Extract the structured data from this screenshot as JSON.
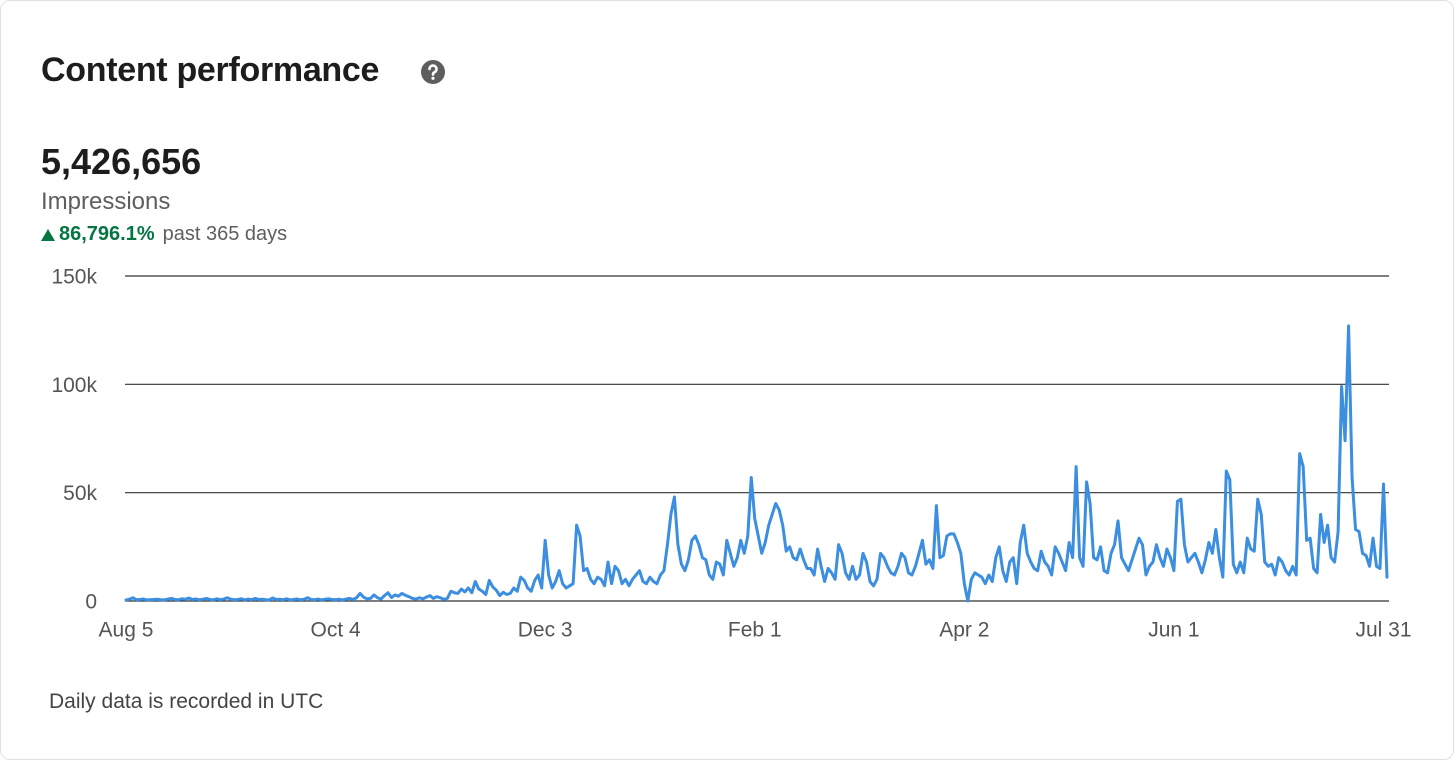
{
  "header": {
    "title": "Content performance"
  },
  "summary": {
    "value": "5,426,656",
    "metric": "Impressions",
    "change": "86,796.1%",
    "period": "past 365 days"
  },
  "chart_data": {
    "type": "line",
    "color": "#3b8ee0",
    "ylim": [
      0,
      150000
    ],
    "yticks": [
      {
        "value": 0,
        "label": "0"
      },
      {
        "value": 50000,
        "label": "50k"
      },
      {
        "value": 100000,
        "label": "100k"
      },
      {
        "value": 150000,
        "label": "150k"
      }
    ],
    "grid": true,
    "categories": [
      "Aug 5",
      null,
      null,
      null,
      null,
      null,
      null,
      null,
      null,
      null,
      null,
      null,
      null,
      null,
      null,
      null,
      null,
      null,
      null,
      null,
      null,
      null,
      null,
      null,
      null,
      null,
      null,
      null,
      null,
      null,
      null,
      null,
      null,
      null,
      null,
      null,
      null,
      null,
      null,
      null,
      null,
      null,
      null,
      null,
      null,
      null,
      null,
      null,
      null,
      null,
      null,
      null,
      null,
      null,
      null,
      null,
      null,
      null,
      null,
      null,
      "Oct 4",
      null,
      null,
      null,
      null,
      null,
      null,
      null,
      null,
      null,
      null,
      null,
      null,
      null,
      null,
      null,
      null,
      null,
      null,
      null,
      null,
      null,
      null,
      null,
      null,
      null,
      null,
      null,
      null,
      null,
      null,
      null,
      null,
      null,
      null,
      null,
      null,
      null,
      null,
      null,
      null,
      null,
      null,
      null,
      null,
      null,
      null,
      null,
      null,
      null,
      null,
      null,
      null,
      null,
      null,
      null,
      null,
      null,
      null,
      null,
      "Dec 3",
      null,
      null,
      null,
      null,
      null,
      null,
      null,
      null,
      null,
      null,
      null,
      null,
      null,
      null,
      null,
      null,
      null,
      null,
      null,
      null,
      null,
      null,
      null,
      null,
      null,
      null,
      null,
      null,
      null,
      null,
      null,
      null,
      null,
      null,
      null,
      null,
      null,
      null,
      null,
      null,
      null,
      null,
      null,
      null,
      null,
      null,
      null,
      null,
      null,
      null,
      null,
      null,
      null,
      null,
      null,
      null,
      null,
      null,
      null,
      "Feb 1",
      null,
      null,
      null,
      null,
      null,
      null,
      null,
      null,
      null,
      null,
      null,
      null,
      null,
      null,
      null,
      null,
      null,
      null,
      null,
      null,
      null,
      null,
      null,
      null,
      null,
      null,
      null,
      null,
      null,
      null,
      null,
      null,
      null,
      null,
      null,
      null,
      null,
      null,
      null,
      null,
      null,
      null,
      null,
      null,
      null,
      null,
      null,
      null,
      null,
      null,
      null,
      null,
      null,
      null,
      null,
      null,
      null,
      null,
      null,
      "Apr 2",
      null,
      null,
      null,
      null,
      null,
      null,
      null,
      null,
      null,
      null,
      null,
      null,
      null,
      null,
      null,
      null,
      null,
      null,
      null,
      null,
      null,
      null,
      null,
      null,
      null,
      null,
      null,
      null,
      null,
      null,
      null,
      null,
      null,
      null,
      null,
      null,
      null,
      null,
      null,
      null,
      null,
      null,
      null,
      null,
      null,
      null,
      null,
      null,
      null,
      null,
      null,
      null,
      null,
      null,
      null,
      null,
      null,
      null,
      null,
      "Jun 1",
      null,
      null,
      null,
      null,
      null,
      null,
      null,
      null,
      null,
      null,
      null,
      null,
      null,
      null,
      null,
      null,
      null,
      null,
      null,
      null,
      null,
      null,
      null,
      null,
      null,
      null,
      null,
      null,
      null,
      null,
      null,
      null,
      null,
      null,
      null,
      null,
      null,
      null,
      null,
      null,
      null,
      null,
      null,
      null,
      null,
      null,
      null,
      null,
      null,
      null,
      null,
      null,
      null,
      null,
      null,
      null,
      null,
      null,
      null,
      "Jul 31",
      null
    ],
    "values": [
      500,
      800,
      1500,
      600,
      700,
      900,
      500,
      600,
      700,
      800,
      600,
      500,
      900,
      1200,
      700,
      600,
      1000,
      800,
      1400,
      700,
      900,
      600,
      800,
      1200,
      700,
      500,
      1000,
      600,
      900,
      1500,
      800,
      600,
      700,
      1000,
      500,
      900,
      600,
      1200,
      700,
      800,
      600,
      500,
      1400,
      700,
      800,
      600,
      1000,
      500,
      700,
      900,
      600,
      800,
      1500,
      700,
      600,
      900,
      500,
      800,
      1000,
      700,
      600,
      800,
      500,
      900,
      1200,
      700,
      1500,
      3500,
      1800,
      1000,
      1200,
      2800,
      1500,
      900,
      2500,
      3800,
      1600,
      2800,
      2200,
      3500,
      2600,
      2000,
      1200,
      900,
      1500,
      1000,
      1800,
      2500,
      1200,
      2000,
      1500,
      800,
      1200,
      4500,
      3800,
      3500,
      5500,
      4200,
      6000,
      3800,
      9000,
      5500,
      4500,
      3000,
      9500,
      6500,
      5000,
      2500,
      4000,
      3000,
      3500,
      6000,
      4500,
      11000,
      9500,
      6000,
      4500,
      9500,
      12000,
      6000,
      28000,
      12000,
      6000,
      9000,
      14000,
      8000,
      6000,
      7000,
      8000,
      35000,
      30000,
      14000,
      15000,
      10000,
      8000,
      11000,
      10000,
      7000,
      18000,
      8000,
      16000,
      14000,
      8000,
      10000,
      7000,
      10000,
      12000,
      14000,
      9000,
      8000,
      11000,
      9000,
      8000,
      12000,
      14000,
      26000,
      40000,
      48000,
      26000,
      17000,
      14000,
      19000,
      28000,
      30000,
      26000,
      20000,
      19000,
      12000,
      10000,
      18000,
      17000,
      12000,
      28000,
      22000,
      16000,
      20000,
      28000,
      22000,
      30000,
      57000,
      38000,
      30000,
      22000,
      27000,
      35000,
      40000,
      45000,
      42000,
      35000,
      23000,
      25000,
      20000,
      19000,
      24000,
      19000,
      15000,
      15000,
      12000,
      24000,
      16000,
      9000,
      15000,
      13000,
      10000,
      26000,
      22000,
      13000,
      10000,
      16000,
      10000,
      12000,
      22000,
      18000,
      9000,
      7000,
      10000,
      22000,
      20000,
      16000,
      13000,
      12000,
      16000,
      22000,
      20000,
      13000,
      12000,
      16000,
      22000,
      28000,
      17000,
      19000,
      15000,
      44000,
      20000,
      21000,
      30000,
      31000,
      31000,
      27000,
      22000,
      8000,
      0,
      10000,
      13000,
      12000,
      11000,
      8000,
      12000,
      9000,
      20000,
      25000,
      14000,
      9000,
      18000,
      20000,
      8000,
      27000,
      35000,
      22000,
      18000,
      15000,
      14000,
      23000,
      18000,
      16000,
      12000,
      25000,
      22000,
      18000,
      14000,
      27000,
      20000,
      62000,
      20000,
      16000,
      55000,
      45000,
      20000,
      19000,
      25000,
      14000,
      13000,
      22000,
      26000,
      37000,
      20000,
      17000,
      14000,
      19000,
      24000,
      29000,
      26000,
      12000,
      16000,
      18000,
      26000,
      20000,
      16000,
      24000,
      20000,
      14000,
      46000,
      47000,
      26000,
      18000,
      20000,
      22000,
      18000,
      13000,
      19000,
      27000,
      22000,
      33000,
      20000,
      11000,
      60000,
      56000,
      17000,
      13000,
      18000,
      13000,
      29000,
      24000,
      23000,
      47000,
      40000,
      18000,
      16000,
      17000,
      12000,
      20000,
      18000,
      14000,
      12000,
      16000,
      12000,
      68000,
      62000,
      28000,
      29000,
      15000,
      13000,
      40000,
      27000,
      35000,
      20000,
      18000,
      32000,
      99000,
      74000,
      127000,
      57000,
      33000,
      32000,
      22000,
      21000,
      16000,
      29000,
      16000,
      15000,
      54000,
      11000
    ]
  },
  "footer": {
    "note": "Daily data is recorded in UTC"
  }
}
